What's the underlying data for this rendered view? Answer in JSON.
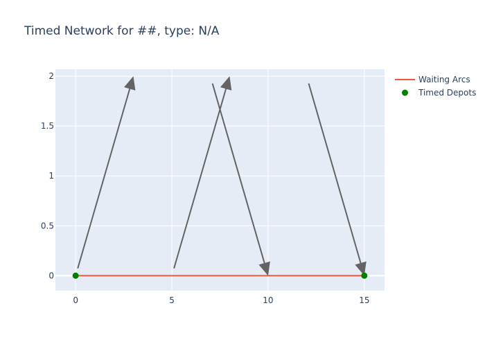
{
  "chart_data": {
    "type": "scatter",
    "title": "Timed Network for ##, type: N/A",
    "xlabel": "",
    "ylabel": "",
    "xlim": [
      -1.05,
      16.05
    ],
    "ylim": [
      -0.15,
      2.07
    ],
    "x_ticks": [
      0,
      5,
      10,
      15
    ],
    "y_ticks": [
      0,
      0.5,
      1,
      1.5,
      2
    ],
    "x_tick_labels": [
      "0",
      "5",
      "10",
      "15"
    ],
    "y_tick_labels": [
      "0",
      "0.5",
      "1",
      "1.5",
      "2"
    ],
    "grid": true,
    "plot_background": "#e5ecf6",
    "legend": {
      "position": "top-right",
      "entries": [
        {
          "name": "Waiting Arcs",
          "symbol": "line",
          "color": "#ef553b"
        },
        {
          "name": "Timed Depots",
          "symbol": "marker",
          "color": "#008000"
        }
      ]
    },
    "series": [
      {
        "name": "Waiting Arcs",
        "mode": "lines",
        "color": "#ef553b",
        "x": [
          0,
          15
        ],
        "y": [
          0,
          0
        ]
      },
      {
        "name": "Timed Depots",
        "mode": "markers",
        "color": "#008000",
        "x": [
          0,
          15
        ],
        "y": [
          0,
          0
        ]
      }
    ],
    "annotations": [
      {
        "type": "arrow",
        "from": [
          0,
          0
        ],
        "to": [
          3,
          2
        ],
        "color": "#636363"
      },
      {
        "type": "arrow",
        "from": [
          5,
          0
        ],
        "to": [
          8,
          2
        ],
        "color": "#636363"
      },
      {
        "type": "arrow",
        "from": [
          7,
          2
        ],
        "to": [
          10,
          0
        ],
        "color": "#636363"
      },
      {
        "type": "arrow",
        "from": [
          12,
          2
        ],
        "to": [
          15,
          0
        ],
        "color": "#636363"
      }
    ]
  }
}
